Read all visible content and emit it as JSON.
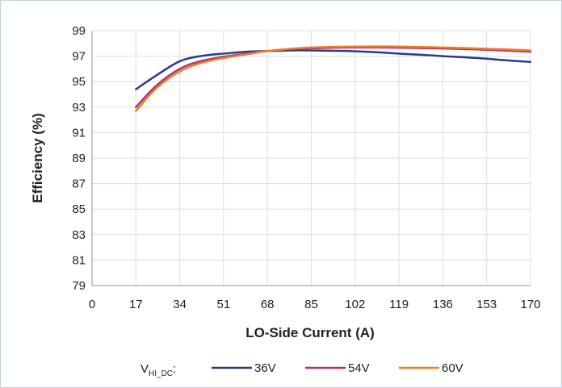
{
  "chart_data": {
    "type": "line",
    "xlabel": "LO-Side Current (A)",
    "ylabel": "Efficiency (%)",
    "xlim": [
      0,
      170
    ],
    "ylim": [
      79,
      99
    ],
    "xticks": [
      0,
      17,
      34,
      51,
      68,
      85,
      102,
      119,
      136,
      153,
      170
    ],
    "yticks": [
      79,
      81,
      83,
      85,
      87,
      89,
      91,
      93,
      95,
      97,
      99
    ],
    "x_tick_labels": [
      "0",
      "17",
      "34",
      "51",
      "68",
      "85",
      "102",
      "119",
      "136",
      "153",
      "170"
    ],
    "y_tick_labels": [
      "79",
      "81",
      "83",
      "85",
      "87",
      "89",
      "91",
      "93",
      "95",
      "97",
      "99"
    ],
    "grid": true,
    "legend_placement": "bottom",
    "legend_prefix": {
      "main": "V",
      "sub": "HI_DC",
      "suffix": ":"
    },
    "series": [
      {
        "name": "36V",
        "color": "#283a8c",
        "x": [
          17,
          25,
          34,
          42,
          51,
          60,
          68,
          77,
          85,
          94,
          102,
          111,
          119,
          128,
          136,
          145,
          153,
          162,
          170
        ],
        "y": [
          94.4,
          95.5,
          96.6,
          97.0,
          97.2,
          97.35,
          97.4,
          97.45,
          97.45,
          97.42,
          97.38,
          97.3,
          97.2,
          97.1,
          97.0,
          96.9,
          96.8,
          96.65,
          96.55
        ]
      },
      {
        "name": "54V",
        "color": "#b0317f",
        "x": [
          17,
          25,
          34,
          42,
          51,
          60,
          68,
          77,
          85,
          94,
          102,
          111,
          119,
          128,
          136,
          145,
          153,
          162,
          170
        ],
        "y": [
          93.0,
          94.7,
          96.0,
          96.6,
          96.95,
          97.2,
          97.4,
          97.55,
          97.62,
          97.66,
          97.68,
          97.68,
          97.66,
          97.63,
          97.6,
          97.55,
          97.5,
          97.42,
          97.35
        ]
      },
      {
        "name": "60V",
        "color": "#f07d1e",
        "x": [
          17,
          25,
          34,
          42,
          51,
          60,
          68,
          77,
          85,
          94,
          102,
          111,
          119,
          128,
          136,
          145,
          153,
          162,
          170
        ],
        "y": [
          92.7,
          94.5,
          95.8,
          96.45,
          96.85,
          97.15,
          97.4,
          97.58,
          97.68,
          97.73,
          97.75,
          97.76,
          97.75,
          97.72,
          97.68,
          97.63,
          97.58,
          97.52,
          97.45
        ]
      }
    ]
  }
}
